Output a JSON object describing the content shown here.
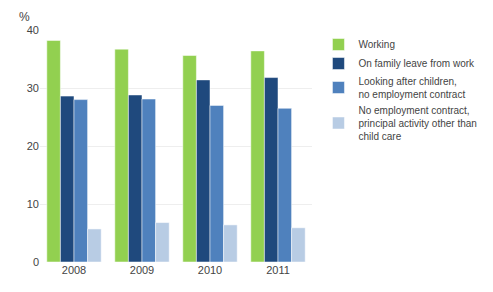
{
  "chart_data": {
    "type": "bar",
    "ylabel": "%",
    "categories": [
      "2008",
      "2009",
      "2010",
      "2011"
    ],
    "series": [
      {
        "name": "Working",
        "color": "#92D050",
        "values": [
          38.2,
          36.7,
          35.6,
          36.4
        ]
      },
      {
        "name": "On family leave from work",
        "color": "#1F497D",
        "values": [
          28.6,
          28.8,
          31.4,
          31.8
        ]
      },
      {
        "name": "Looking after children,\nno employment contract",
        "color": "#4F81BD",
        "values": [
          28.0,
          28.1,
          27.0,
          26.5
        ]
      },
      {
        "name": "No employment contract,\nprincipal activity other than\nchild care",
        "color": "#B8CCE4",
        "values": [
          5.7,
          6.8,
          6.4,
          5.9
        ]
      }
    ],
    "ylim": [
      0,
      40
    ],
    "yticks": [
      0,
      10,
      20,
      30,
      40
    ],
    "grid": true,
    "legend": "right"
  }
}
